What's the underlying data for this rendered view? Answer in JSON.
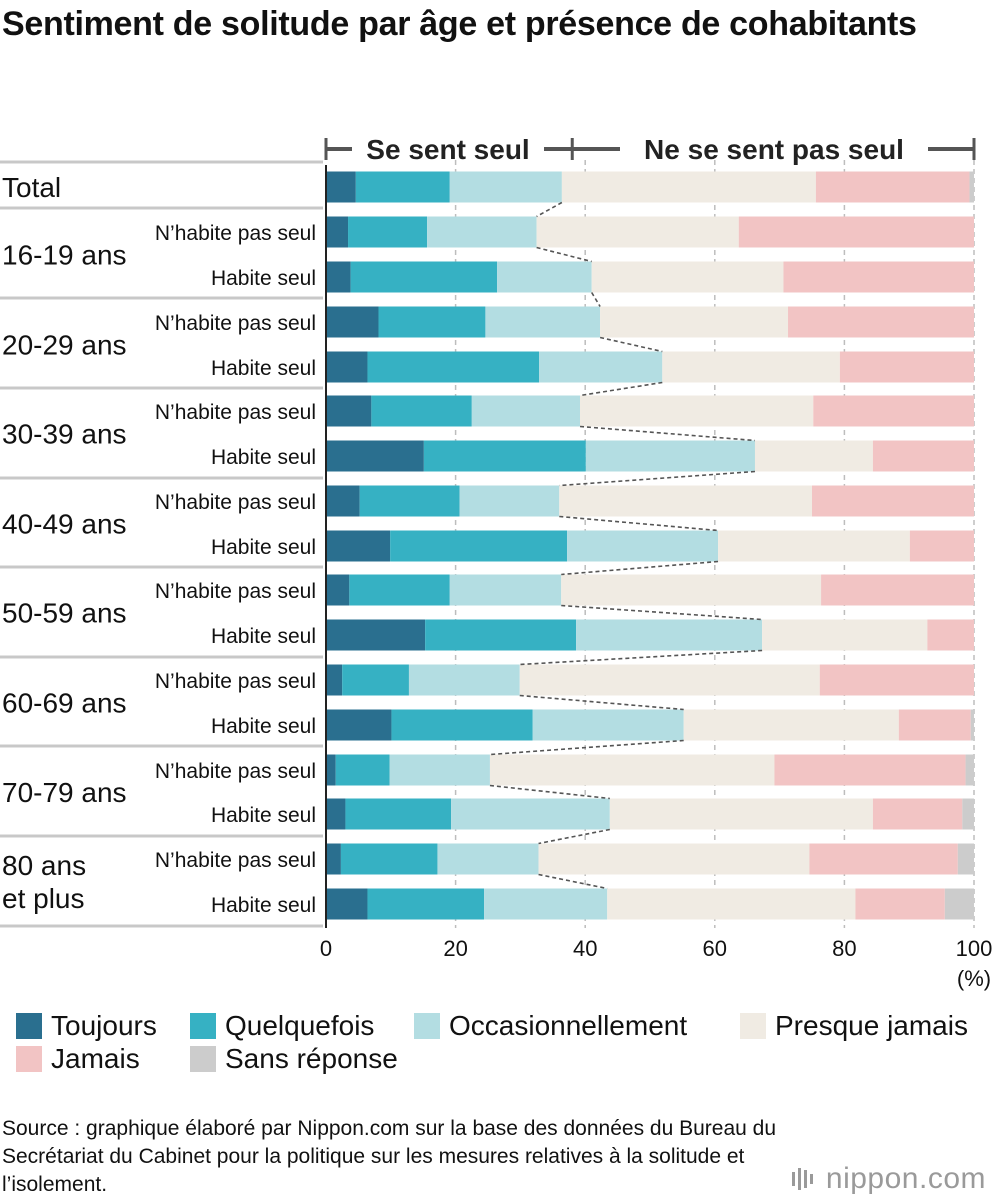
{
  "chart_data": {
    "type": "bar",
    "orientation": "horizontal",
    "stacked": true,
    "title": "Sentiment de solitude par âge et présence de cohabitants",
    "groups": [
      {
        "label": "Total",
        "rows": [
          {
            "label": "",
            "values": [
              4.6,
              14.5,
              17.3,
              39.2,
              23.7,
              0.7
            ]
          }
        ]
      },
      {
        "label": "16-19 ans",
        "rows": [
          {
            "label": "N’habite pas seul",
            "values": [
              3.4,
              12.2,
              16.9,
              31.2,
              36.3,
              0.0
            ]
          },
          {
            "label": "Habite seul",
            "values": [
              3.8,
              22.6,
              14.6,
              29.6,
              29.4,
              0.0
            ]
          }
        ]
      },
      {
        "label": "20-29 ans",
        "rows": [
          {
            "label": "N’habite pas seul",
            "values": [
              8.1,
              16.5,
              17.7,
              29.0,
              28.7,
              0.0
            ]
          },
          {
            "label": "Habite seul",
            "values": [
              6.4,
              26.5,
              19.0,
              27.4,
              20.7,
              0.0
            ]
          }
        ]
      },
      {
        "label": "30-39 ans",
        "rows": [
          {
            "label": "N’habite pas seul",
            "values": [
              7.0,
              15.5,
              16.7,
              36.0,
              24.8,
              0.0
            ]
          },
          {
            "label": "Habite seul",
            "values": [
              15.1,
              25.0,
              26.1,
              18.2,
              15.6,
              0.0
            ]
          }
        ]
      },
      {
        "label": "40-49 ans",
        "rows": [
          {
            "label": "N’habite pas seul",
            "values": [
              5.2,
              15.4,
              15.4,
              39.0,
              25.0,
              0.0
            ]
          },
          {
            "label": "Habite seul",
            "values": [
              9.9,
              27.3,
              23.3,
              29.6,
              9.9,
              0.0
            ]
          }
        ]
      },
      {
        "label": "50-59 ans",
        "rows": [
          {
            "label": "N’habite pas seul",
            "values": [
              3.6,
              15.5,
              17.2,
              40.1,
              23.6,
              0.0
            ]
          },
          {
            "label": "Habite seul",
            "values": [
              15.3,
              23.3,
              28.7,
              25.5,
              7.2,
              0.0
            ]
          }
        ]
      },
      {
        "label": "60-69 ans",
        "rows": [
          {
            "label": "N’habite pas seul",
            "values": [
              2.5,
              10.3,
              17.1,
              46.3,
              23.8,
              0.0
            ]
          },
          {
            "label": "Habite seul",
            "values": [
              10.1,
              21.8,
              23.3,
              33.2,
              11.1,
              0.5
            ]
          }
        ]
      },
      {
        "label": "70-79 ans",
        "rows": [
          {
            "label": "N’habite pas seul",
            "values": [
              1.5,
              8.3,
              15.5,
              43.9,
              29.5,
              1.3
            ]
          },
          {
            "label": "Habite seul",
            "values": [
              3.0,
              16.3,
              24.5,
              40.6,
              13.8,
              1.8
            ]
          }
        ]
      },
      {
        "label": "80 ans\net plus",
        "rows": [
          {
            "label": "N’habite pas seul",
            "values": [
              2.3,
              14.9,
              15.6,
              41.8,
              22.9,
              2.5
            ]
          },
          {
            "label": "Habite seul",
            "values": [
              6.4,
              18.0,
              19.0,
              38.3,
              13.8,
              4.5
            ]
          }
        ]
      }
    ],
    "series": [
      {
        "name": "Toujours",
        "color": "#2a6f8f"
      },
      {
        "name": "Quelquefois",
        "color": "#36b1c3"
      },
      {
        "name": "Occasionnellement",
        "color": "#b3dde2"
      },
      {
        "name": "Presque jamais",
        "color": "#f0ebe3"
      },
      {
        "name": "Jamais",
        "color": "#f2c4c4"
      },
      {
        "name": "Sans réponse",
        "color": "#cccccc"
      }
    ],
    "xlim": [
      0,
      100
    ],
    "xticks": [
      0,
      20,
      40,
      60,
      80,
      100
    ],
    "xunit": "(%)",
    "grid": true,
    "bracket_labels": [
      "Se sent seul",
      "Ne se sent pas seul"
    ],
    "legend_position": "bottom"
  },
  "source": "Source : graphique élaboré par Nippon.com sur la base des données du Bureau du Secrétariat du Cabinet pour la politique sur les mesures relatives à la solitude et l’isolement.",
  "logo": "nippon.com"
}
